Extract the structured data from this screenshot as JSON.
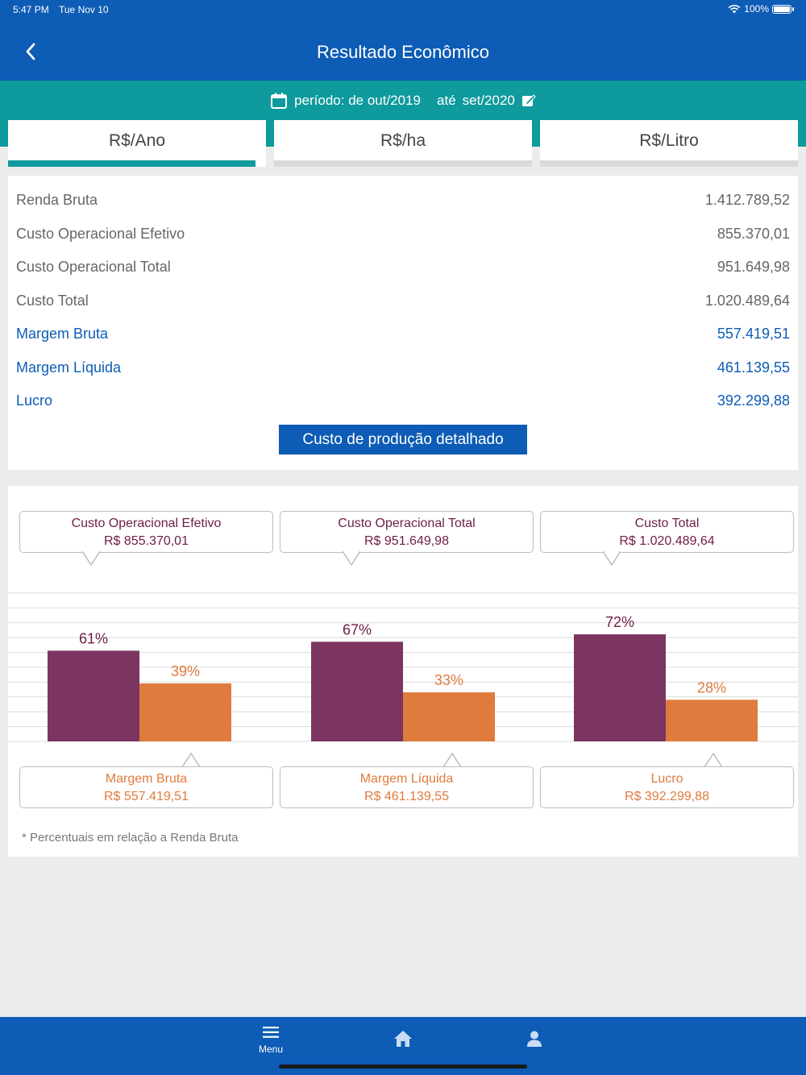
{
  "status_bar": {
    "time": "5:47 PM",
    "date": "Tue Nov 10",
    "battery": "100%"
  },
  "header": {
    "title": "Resultado Econômico"
  },
  "period": {
    "label": "período: de out/2019",
    "until": "até",
    "end": "set/2020"
  },
  "tabs": [
    {
      "label": "R$/Ano",
      "active": true
    },
    {
      "label": "R$/ha",
      "active": false
    },
    {
      "label": "R$/Litro",
      "active": false
    }
  ],
  "summary": {
    "rows": [
      {
        "label": "Renda Bruta",
        "value": "1.412.789,52",
        "highlight": false
      },
      {
        "label": "Custo Operacional Efetivo",
        "value": "855.370,01",
        "highlight": false
      },
      {
        "label": "Custo Operacional Total",
        "value": "951.649,98",
        "highlight": false
      },
      {
        "label": "Custo Total",
        "value": "1.020.489,64",
        "highlight": false
      },
      {
        "label": "Margem Bruta",
        "value": "557.419,51",
        "highlight": true
      },
      {
        "label": "Margem Líquida",
        "value": "461.139,55",
        "highlight": true
      },
      {
        "label": "Lucro",
        "value": "392.299,88",
        "highlight": true
      }
    ],
    "detail_button": "Custo de produção detalhado"
  },
  "chart_data": {
    "type": "bar",
    "colors": {
      "cost": "#7b3560",
      "margin": "#e07b3e",
      "cost_text": "#6f1d46"
    },
    "groups": [
      {
        "cost_label": "Custo Operacional Efetivo",
        "cost_value": "R$ 855.370,01",
        "cost_pct": 61,
        "cost_pct_label": "61%",
        "margin_label": "Margem Bruta",
        "margin_value": "R$ 557.419,51",
        "margin_pct": 39,
        "margin_pct_label": "39%"
      },
      {
        "cost_label": "Custo Operacional Total",
        "cost_value": "R$ 951.649,98",
        "cost_pct": 67,
        "cost_pct_label": "67%",
        "margin_label": "Margem Líquida",
        "margin_value": "R$ 461.139,55",
        "margin_pct": 33,
        "margin_pct_label": "33%"
      },
      {
        "cost_label": "Custo Total",
        "cost_value": "R$ 1.020.489,64",
        "cost_pct": 72,
        "cost_pct_label": "72%",
        "margin_label": "Lucro",
        "margin_value": "R$ 392.299,88",
        "margin_pct": 28,
        "margin_pct_label": "28%"
      }
    ],
    "footnote": "* Percentuais em relação a Renda Bruta"
  },
  "bottom_nav": {
    "menu_label": "Menu"
  }
}
